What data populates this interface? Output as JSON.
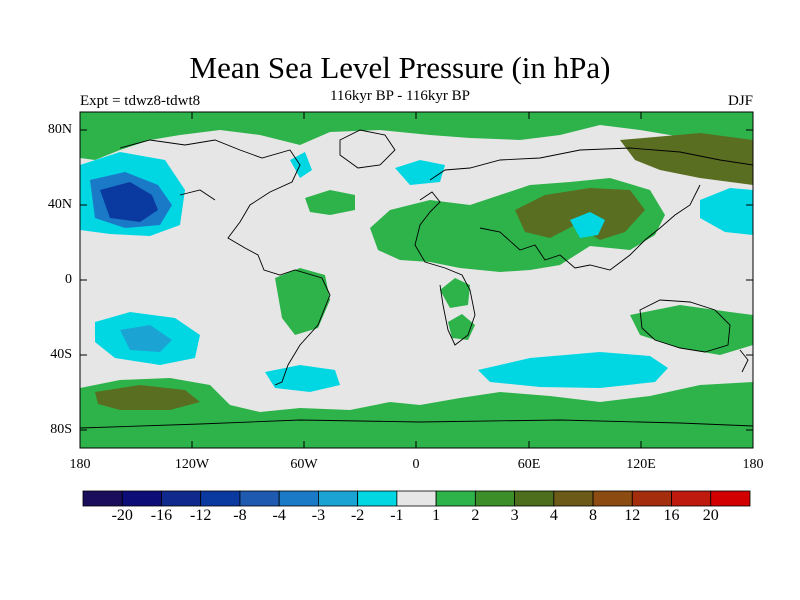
{
  "title": "Mean Sea Level Pressure (in hPa)",
  "subtitle": "116kyr BP - 116kyr BP",
  "experiment_label": "Expt = tdwz8-tdwt8",
  "season": "DJF",
  "lat_labels": [
    "80N",
    "40N",
    "0",
    "40S",
    "80S"
  ],
  "lon_labels": [
    "180",
    "120W",
    "60W",
    "0",
    "60E",
    "120E",
    "180"
  ],
  "colorbar": {
    "labels": [
      "-20",
      "-16",
      "-12",
      "-8",
      "-4",
      "-3",
      "-2",
      "-1",
      "1",
      "2",
      "3",
      "4",
      "8",
      "12",
      "16",
      "20"
    ],
    "colors": [
      "#1a0d5c",
      "#0d0d78",
      "#0f2a8c",
      "#0a3aa0",
      "#1e5bb0",
      "#1b7ac8",
      "#1ba3d4",
      "#00d7e3",
      "#e6e6e6",
      "#2db34a",
      "#3c8f28",
      "#4d6e1c",
      "#6b5a18",
      "#8c4b10",
      "#a32d0d",
      "#be1a0d",
      "#d20000"
    ]
  },
  "colors": {
    "background": "#e6e6e6",
    "green": "#2db34a",
    "dark_green": "#5a6e22",
    "cyan": "#00d7e3",
    "light_blue": "#1ba3d4",
    "blue": "#1b7ac8",
    "dark_blue": "#0a3aa0"
  }
}
